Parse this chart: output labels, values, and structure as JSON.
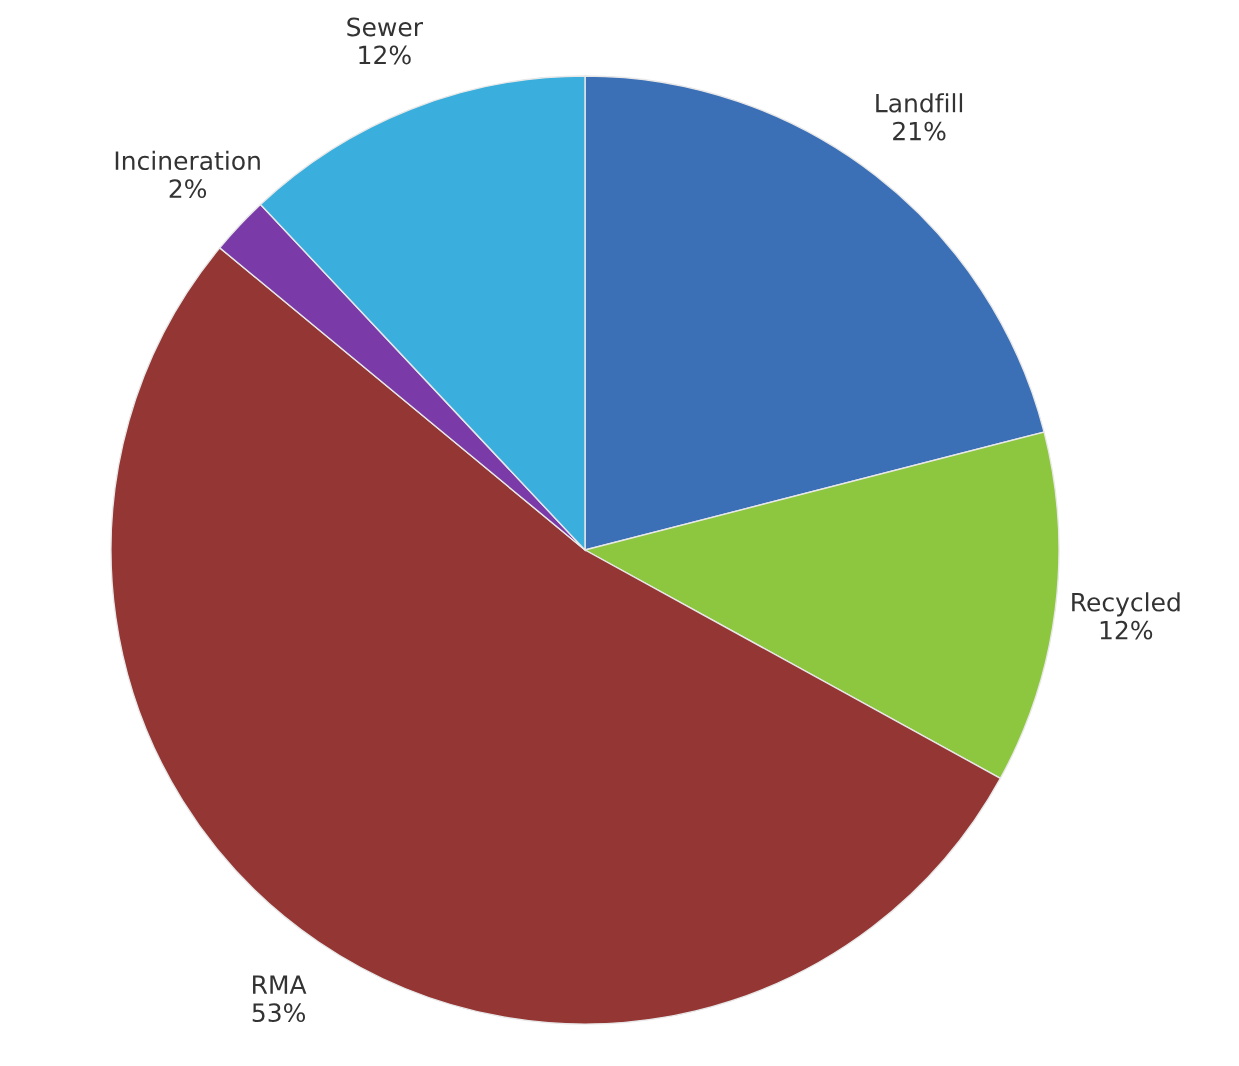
{
  "chart_data": {
    "type": "pie",
    "categories": [
      "Landfill",
      "Recycled",
      "RMA",
      "Incineration",
      "Sewer"
    ],
    "values": [
      21,
      12,
      53,
      2,
      12
    ],
    "value_labels": [
      "21%",
      "12%",
      "53%",
      "2%",
      "12%"
    ],
    "colors": [
      "#3b6fb6",
      "#8dc63f",
      "#943634",
      "#7a3aa8",
      "#3aaedc"
    ],
    "legend": false
  }
}
